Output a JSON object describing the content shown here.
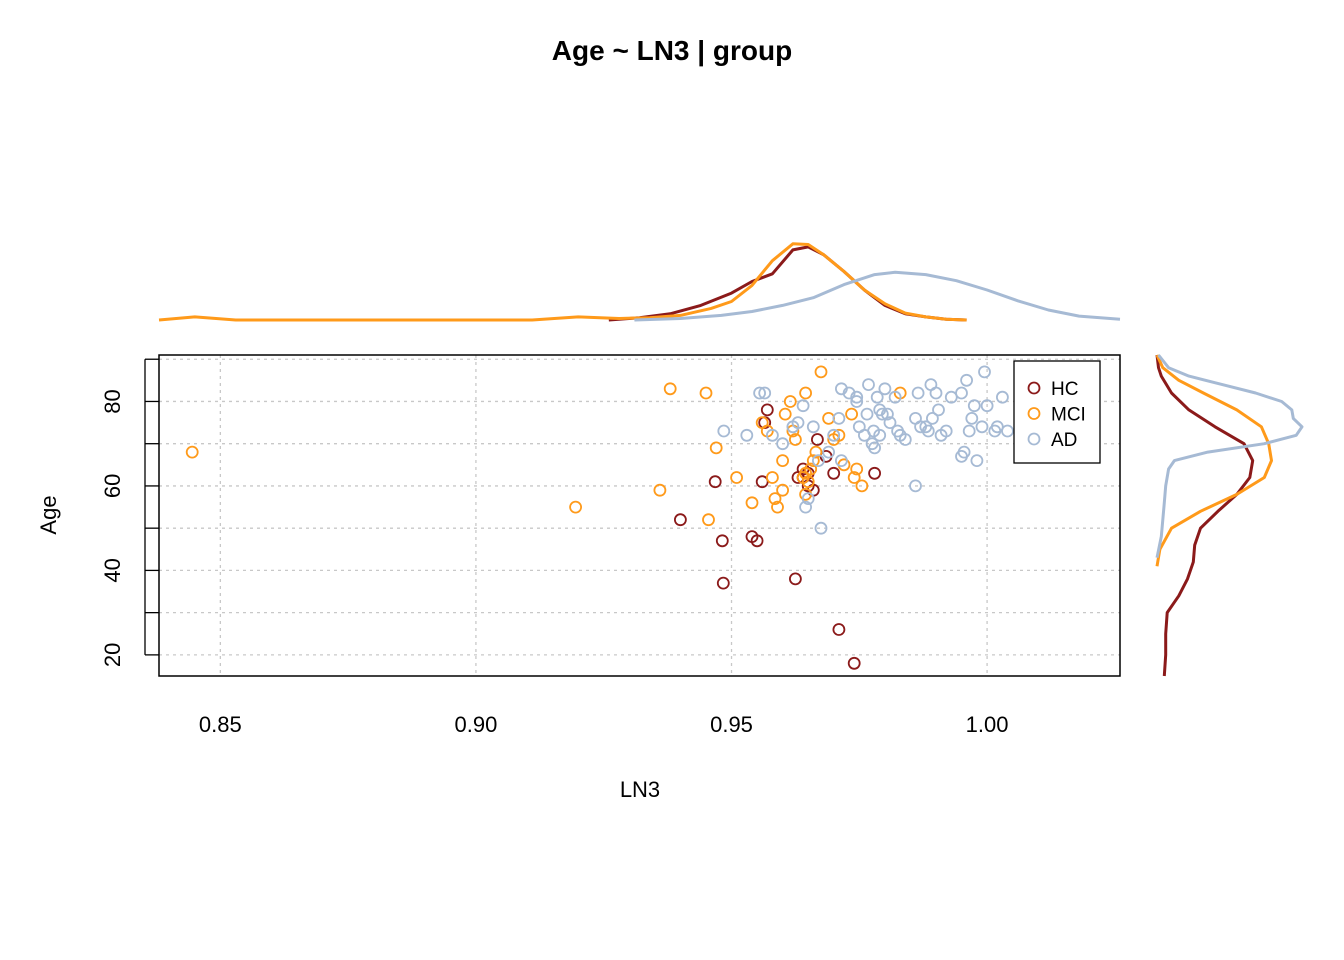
{
  "chart_data": {
    "type": "scatter",
    "title": "Age ~ LN3 | group",
    "xlabel": "LN3",
    "ylabel": "Age",
    "xlim": [
      0.838,
      1.026
    ],
    "ylim": [
      15,
      91
    ],
    "x_ticks": [
      0.85,
      0.9,
      0.95,
      1.0
    ],
    "x_tick_labels": [
      "0.85",
      "0.90",
      "0.95",
      "1.00"
    ],
    "y_ticks": [
      20,
      30,
      40,
      50,
      60,
      70,
      80,
      90
    ],
    "y_tick_labels": [
      "20",
      "",
      "40",
      "",
      "60",
      "",
      "80",
      ""
    ],
    "grid": true,
    "legend_position": "top-right",
    "marginal_densities": true,
    "series": [
      {
        "name": "HC",
        "color": "#8b1a1a",
        "points": [
          [
            0.957,
            78
          ],
          [
            0.9565,
            75
          ],
          [
            0.9668,
            71
          ],
          [
            0.9685,
            67
          ],
          [
            0.964,
            64
          ],
          [
            0.965,
            63
          ],
          [
            0.963,
            62
          ],
          [
            0.97,
            63
          ],
          [
            0.965,
            60
          ],
          [
            0.978,
            63
          ],
          [
            0.956,
            61
          ],
          [
            0.9468,
            61
          ],
          [
            0.94,
            52
          ],
          [
            0.9482,
            47
          ],
          [
            0.954,
            48
          ],
          [
            0.955,
            47
          ],
          [
            0.9484,
            37
          ],
          [
            0.9625,
            38
          ],
          [
            0.971,
            26
          ],
          [
            0.974,
            18
          ],
          [
            0.964,
            62
          ],
          [
            0.966,
            59
          ]
        ]
      },
      {
        "name": "MCI",
        "color": "#ff9a1a",
        "points": [
          [
            0.8445,
            68
          ],
          [
            0.9195,
            55
          ],
          [
            0.936,
            59
          ],
          [
            0.938,
            83
          ],
          [
            0.945,
            82
          ],
          [
            0.9455,
            52
          ],
          [
            0.947,
            69
          ],
          [
            0.951,
            62
          ],
          [
            0.954,
            56
          ],
          [
            0.956,
            75
          ],
          [
            0.958,
            62
          ],
          [
            0.9585,
            57
          ],
          [
            0.959,
            55
          ],
          [
            0.96,
            59
          ],
          [
            0.96,
            66
          ],
          [
            0.9605,
            77
          ],
          [
            0.9615,
            80
          ],
          [
            0.962,
            73
          ],
          [
            0.9625,
            71
          ],
          [
            0.964,
            62
          ],
          [
            0.9645,
            63
          ],
          [
            0.9645,
            82
          ],
          [
            0.965,
            61
          ],
          [
            0.9655,
            64
          ],
          [
            0.966,
            66
          ],
          [
            0.9665,
            68
          ],
          [
            0.9675,
            87
          ],
          [
            0.969,
            76
          ],
          [
            0.97,
            71
          ],
          [
            0.971,
            72
          ],
          [
            0.972,
            65
          ],
          [
            0.9735,
            77
          ],
          [
            0.974,
            62
          ],
          [
            0.9745,
            64
          ],
          [
            0.9755,
            60
          ],
          [
            0.983,
            82
          ],
          [
            0.957,
            73
          ],
          [
            0.9645,
            58
          ]
        ]
      },
      {
        "name": "AD",
        "color": "#a6bad4",
        "points": [
          [
            0.9485,
            73
          ],
          [
            0.953,
            72
          ],
          [
            0.9555,
            82
          ],
          [
            0.9565,
            82
          ],
          [
            0.958,
            72
          ],
          [
            0.96,
            70
          ],
          [
            0.962,
            74
          ],
          [
            0.963,
            75
          ],
          [
            0.964,
            79
          ],
          [
            0.965,
            57
          ],
          [
            0.966,
            74
          ],
          [
            0.967,
            66
          ],
          [
            0.969,
            68
          ],
          [
            0.97,
            72
          ],
          [
            0.971,
            76
          ],
          [
            0.9715,
            83
          ],
          [
            0.9715,
            66
          ],
          [
            0.973,
            82
          ],
          [
            0.9745,
            81
          ],
          [
            0.975,
            74
          ],
          [
            0.976,
            72
          ],
          [
            0.9765,
            77
          ],
          [
            0.9768,
            84
          ],
          [
            0.9775,
            70
          ],
          [
            0.9778,
            73
          ],
          [
            0.978,
            69
          ],
          [
            0.9785,
            81
          ],
          [
            0.979,
            72
          ],
          [
            0.9795,
            77
          ],
          [
            0.98,
            83
          ],
          [
            0.9805,
            77
          ],
          [
            0.981,
            75
          ],
          [
            0.982,
            81
          ],
          [
            0.9825,
            73
          ],
          [
            0.983,
            72
          ],
          [
            0.984,
            71
          ],
          [
            0.986,
            76
          ],
          [
            0.9865,
            82
          ],
          [
            0.987,
            74
          ],
          [
            0.988,
            74
          ],
          [
            0.9885,
            73
          ],
          [
            0.989,
            84
          ],
          [
            0.9893,
            76
          ],
          [
            0.99,
            82
          ],
          [
            0.9905,
            78
          ],
          [
            0.991,
            72
          ],
          [
            0.993,
            81
          ],
          [
            0.995,
            67
          ],
          [
            0.9955,
            68
          ],
          [
            0.996,
            85
          ],
          [
            0.9965,
            73
          ],
          [
            0.997,
            76
          ],
          [
            0.9975,
            79
          ],
          [
            0.998,
            66
          ],
          [
            0.999,
            74
          ],
          [
            0.9995,
            87
          ],
          [
            1.0,
            79
          ],
          [
            1.0015,
            73
          ],
          [
            1.002,
            74
          ],
          [
            1.003,
            81
          ],
          [
            1.004,
            73
          ],
          [
            0.986,
            60
          ],
          [
            0.9645,
            55
          ],
          [
            0.9675,
            50
          ],
          [
            0.9745,
            80
          ],
          [
            0.995,
            82
          ],
          [
            0.979,
            78
          ],
          [
            0.992,
            73
          ]
        ]
      }
    ],
    "x_density": [
      {
        "name": "HC",
        "x": [
          0.926,
          0.932,
          0.938,
          0.944,
          0.95,
          0.954,
          0.958,
          0.962,
          0.965,
          0.968,
          0.972,
          0.976,
          0.98,
          0.984,
          0.988,
          0.992,
          0.996
        ],
        "y": [
          0.0,
          0.03,
          0.08,
          0.19,
          0.35,
          0.5,
          0.6,
          0.91,
          0.95,
          0.85,
          0.63,
          0.39,
          0.19,
          0.08,
          0.04,
          0.01,
          0.0
        ]
      },
      {
        "name": "MCI",
        "x": [
          0.838,
          0.845,
          0.853,
          0.86,
          0.88,
          0.9,
          0.911,
          0.92,
          0.928,
          0.934,
          0.94,
          0.946,
          0.95,
          0.954,
          0.958,
          0.962,
          0.965,
          0.968,
          0.972,
          0.976,
          0.98,
          0.984,
          0.988,
          0.992,
          0.996
        ],
        "y": [
          0.0,
          0.04,
          0.0,
          0.0,
          0.0,
          0.0,
          0.0,
          0.04,
          0.02,
          0.03,
          0.06,
          0.15,
          0.24,
          0.45,
          0.77,
          0.99,
          0.98,
          0.85,
          0.63,
          0.39,
          0.21,
          0.09,
          0.04,
          0.01,
          0.0
        ]
      },
      {
        "name": "AD",
        "x": [
          0.931,
          0.94,
          0.948,
          0.954,
          0.96,
          0.966,
          0.972,
          0.978,
          0.982,
          0.988,
          0.994,
          1.0,
          1.006,
          1.012,
          1.018,
          1.026
        ],
        "y": [
          0.0,
          0.02,
          0.06,
          0.11,
          0.19,
          0.29,
          0.46,
          0.59,
          0.62,
          0.59,
          0.51,
          0.39,
          0.25,
          0.13,
          0.05,
          0.01
        ]
      }
    ],
    "y_density": [
      {
        "name": "HC",
        "y": [
          15,
          20,
          25,
          30,
          34,
          38,
          42,
          46,
          50,
          54,
          58,
          62,
          66,
          70,
          74,
          78,
          82,
          86,
          88,
          91
        ],
        "d": [
          0.05,
          0.06,
          0.06,
          0.07,
          0.15,
          0.21,
          0.25,
          0.26,
          0.3,
          0.42,
          0.55,
          0.64,
          0.66,
          0.6,
          0.4,
          0.22,
          0.1,
          0.03,
          0.01,
          0.0
        ]
      },
      {
        "name": "MCI",
        "y": [
          41,
          45,
          50,
          54,
          58,
          62,
          66,
          70,
          74,
          78,
          82,
          85,
          88,
          91
        ],
        "d": [
          0.0,
          0.02,
          0.1,
          0.3,
          0.55,
          0.74,
          0.79,
          0.77,
          0.72,
          0.55,
          0.32,
          0.15,
          0.04,
          0.0
        ]
      },
      {
        "name": "AD",
        "y": [
          43,
          48,
          52,
          56,
          60,
          64,
          66,
          68,
          70,
          72,
          74,
          76,
          78,
          80,
          82,
          84,
          86,
          88,
          91
        ],
        "d": [
          0.0,
          0.03,
          0.04,
          0.05,
          0.06,
          0.08,
          0.12,
          0.35,
          0.74,
          0.96,
          1.0,
          0.94,
          0.93,
          0.86,
          0.68,
          0.45,
          0.22,
          0.08,
          0.01
        ]
      }
    ]
  }
}
